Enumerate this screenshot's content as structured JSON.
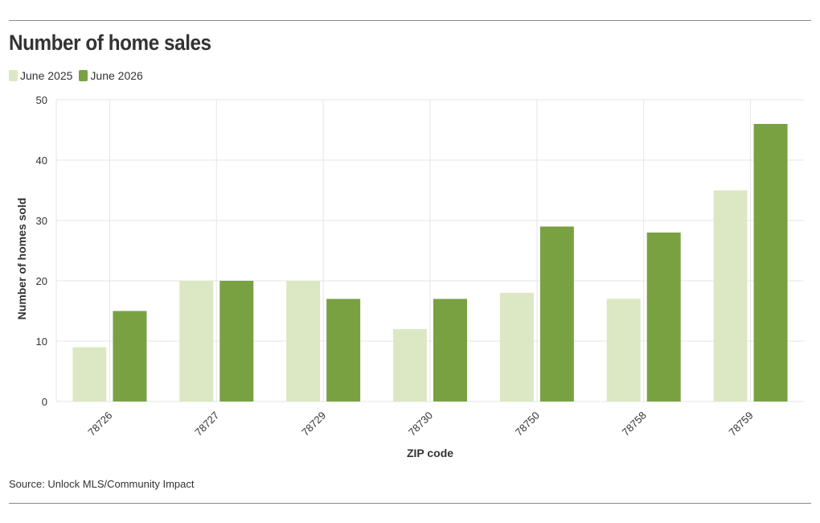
{
  "title": "Number of home sales",
  "source": "Source: Unlock MLS/Community Impact",
  "colors": {
    "series1": "#dce8c3",
    "series2": "#79a142",
    "grid": "#e6e6e6",
    "rule": "#888888",
    "text": "#333333"
  },
  "chart_data": {
    "type": "bar",
    "title": "Number of home sales",
    "xlabel": "ZIP code",
    "ylabel": "Number of homes sold",
    "categories": [
      "78726",
      "78727",
      "78729",
      "78730",
      "78750",
      "78758",
      "78759"
    ],
    "series": [
      {
        "name": "June 2025",
        "values": [
          9,
          20,
          20,
          12,
          18,
          17,
          35
        ]
      },
      {
        "name": "June 2026",
        "values": [
          15,
          20,
          17,
          17,
          29,
          28,
          46
        ]
      }
    ],
    "ylim": [
      0,
      50
    ],
    "yticks": [
      0,
      10,
      20,
      30,
      40,
      50
    ],
    "grid": true,
    "legend_position": "top-left"
  }
}
